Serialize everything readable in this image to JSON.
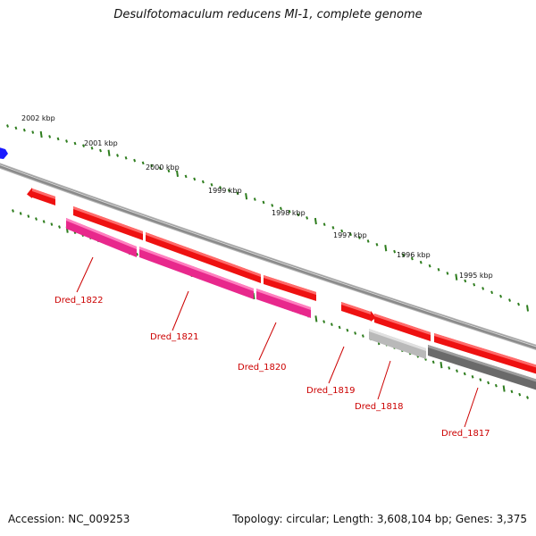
{
  "title": "Desulfotomaculum reducens MI-1, complete genome",
  "footer": {
    "accession": "Accession: NC_009253",
    "stats": "Topology: circular; Length: 3,608,104 bp; Genes: 3,375"
  },
  "scale_labels": [
    "2002 kbp",
    "2001 kbp",
    "2000 kbp",
    "1999 kbp",
    "1998 kbp",
    "1997 kbp",
    "1996 kbp",
    "1995 kbp"
  ],
  "genes": [
    {
      "label": "Dred_1822",
      "strand": "minus",
      "color": "#e8288c"
    },
    {
      "label": "Dred_1821",
      "strand": "minus",
      "color": "#e8288c"
    },
    {
      "label": "Dred_1820",
      "strand": "minus",
      "color": "#e8288c"
    },
    {
      "label": "Dred_1819",
      "strand": "plus",
      "color": "#ee1111"
    },
    {
      "label": "Dred_1818",
      "strand": "minus",
      "color": "#bdbdbd"
    },
    {
      "label": "Dred_1817",
      "strand": "minus",
      "color": "#707070"
    }
  ],
  "colors": {
    "cds_plus": "#ee1111",
    "label_text": "#cc0000",
    "tick": "#2e7d1e",
    "backbone": "#8a8a8a",
    "marker_blue": "#1a1aff"
  }
}
